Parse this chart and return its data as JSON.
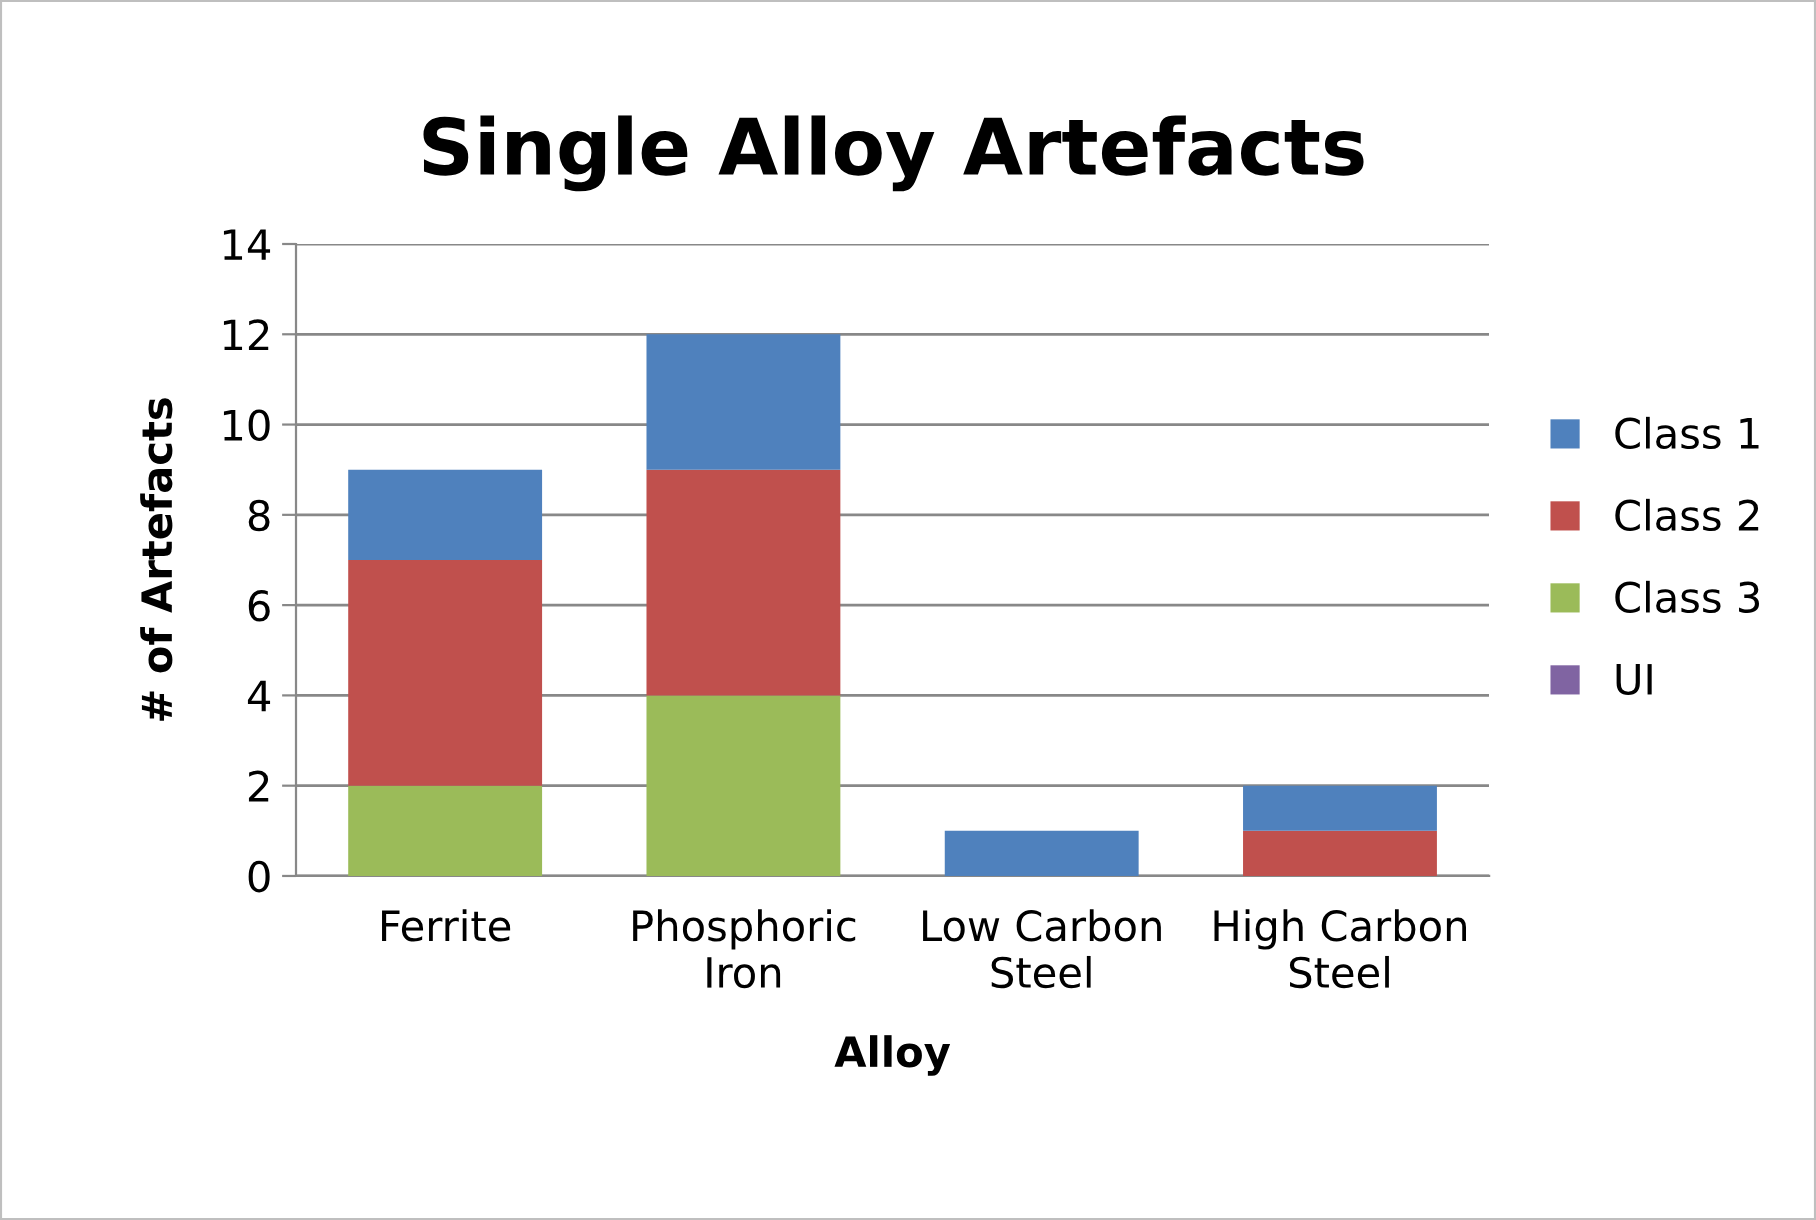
{
  "chart_data": {
    "type": "bar",
    "title": "Single Alloy Artefacts",
    "xlabel": "Alloy",
    "ylabel": "# of Artefacts",
    "categories": [
      "Ferrite",
      "Phosphoric Iron",
      "Low Carbon Steel",
      "High Carbon Steel"
    ],
    "stacked": true,
    "series": [
      {
        "name": "UI",
        "color": "#8064a2",
        "values": [
          0,
          0,
          0,
          0
        ]
      },
      {
        "name": "Class 3",
        "color": "#9bbb59",
        "values": [
          2,
          4,
          0,
          0
        ]
      },
      {
        "name": "Class 2",
        "color": "#c0504d",
        "values": [
          5,
          5,
          0,
          1
        ]
      },
      {
        "name": "Class 1",
        "color": "#4f81bd",
        "values": [
          2,
          3,
          1,
          1
        ]
      }
    ],
    "ylim": [
      0,
      14
    ],
    "yticks": [
      0,
      2,
      4,
      6,
      8,
      10,
      12,
      14
    ],
    "grid": "y",
    "legend": "right"
  }
}
